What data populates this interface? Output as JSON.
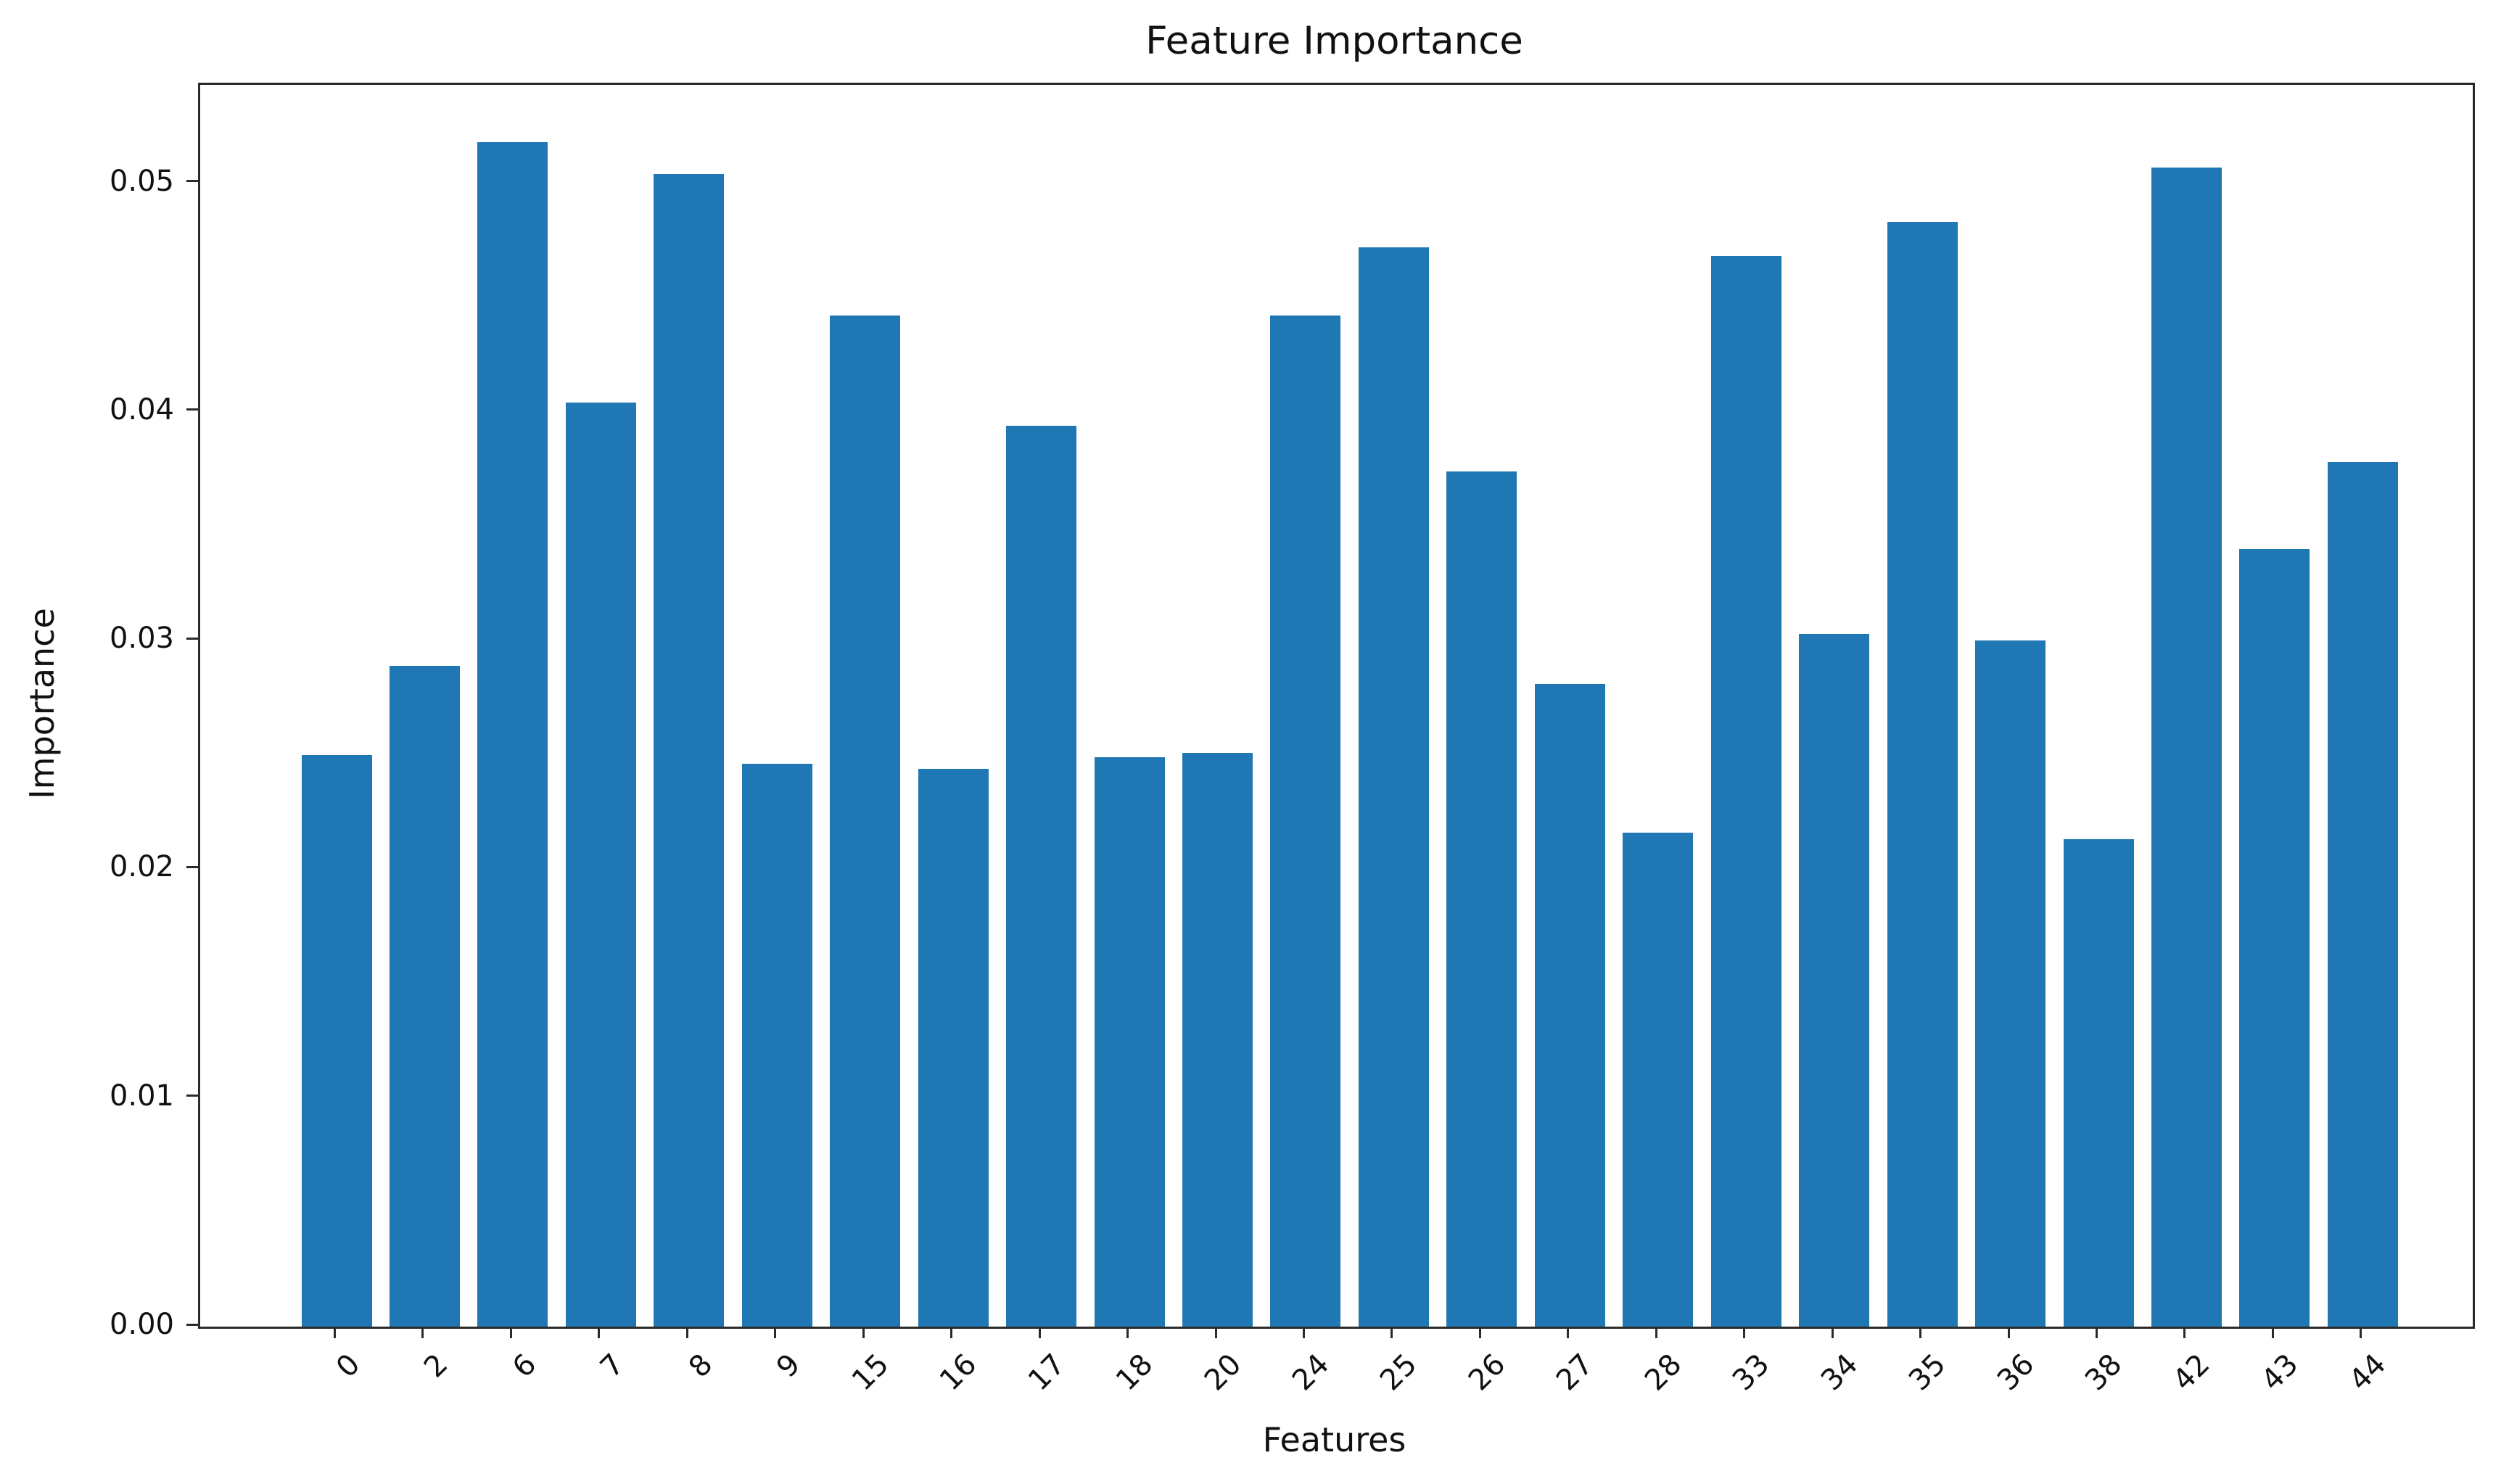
{
  "chart_data": {
    "type": "bar",
    "title": "Feature Importance",
    "xlabel": "Features",
    "ylabel": "Importance",
    "categories": [
      "0",
      "2",
      "6",
      "7",
      "8",
      "9",
      "15",
      "16",
      "17",
      "18",
      "20",
      "24",
      "25",
      "26",
      "27",
      "28",
      "33",
      "34",
      "35",
      "36",
      "38",
      "42",
      "43",
      "44"
    ],
    "values": [
      0.025,
      0.0289,
      0.0518,
      0.0404,
      0.0504,
      0.0246,
      0.0442,
      0.0244,
      0.0394,
      0.0249,
      0.0251,
      0.0442,
      0.0472,
      0.0374,
      0.0281,
      0.0216,
      0.0468,
      0.0303,
      0.0483,
      0.03,
      0.0213,
      0.0507,
      0.034,
      0.0378
    ],
    "yticks": {
      "values": [
        0,
        0.01,
        0.02,
        0.03,
        0.04,
        0.05
      ],
      "labels": [
        "0.00",
        "0.01",
        "0.02",
        "0.03",
        "0.04",
        "0.05"
      ]
    },
    "ylim": [
      0,
      0.0543
    ],
    "bar_color": "#1f77b4",
    "grid": false,
    "x_tick_rotation_deg": 45,
    "legend": null
  }
}
